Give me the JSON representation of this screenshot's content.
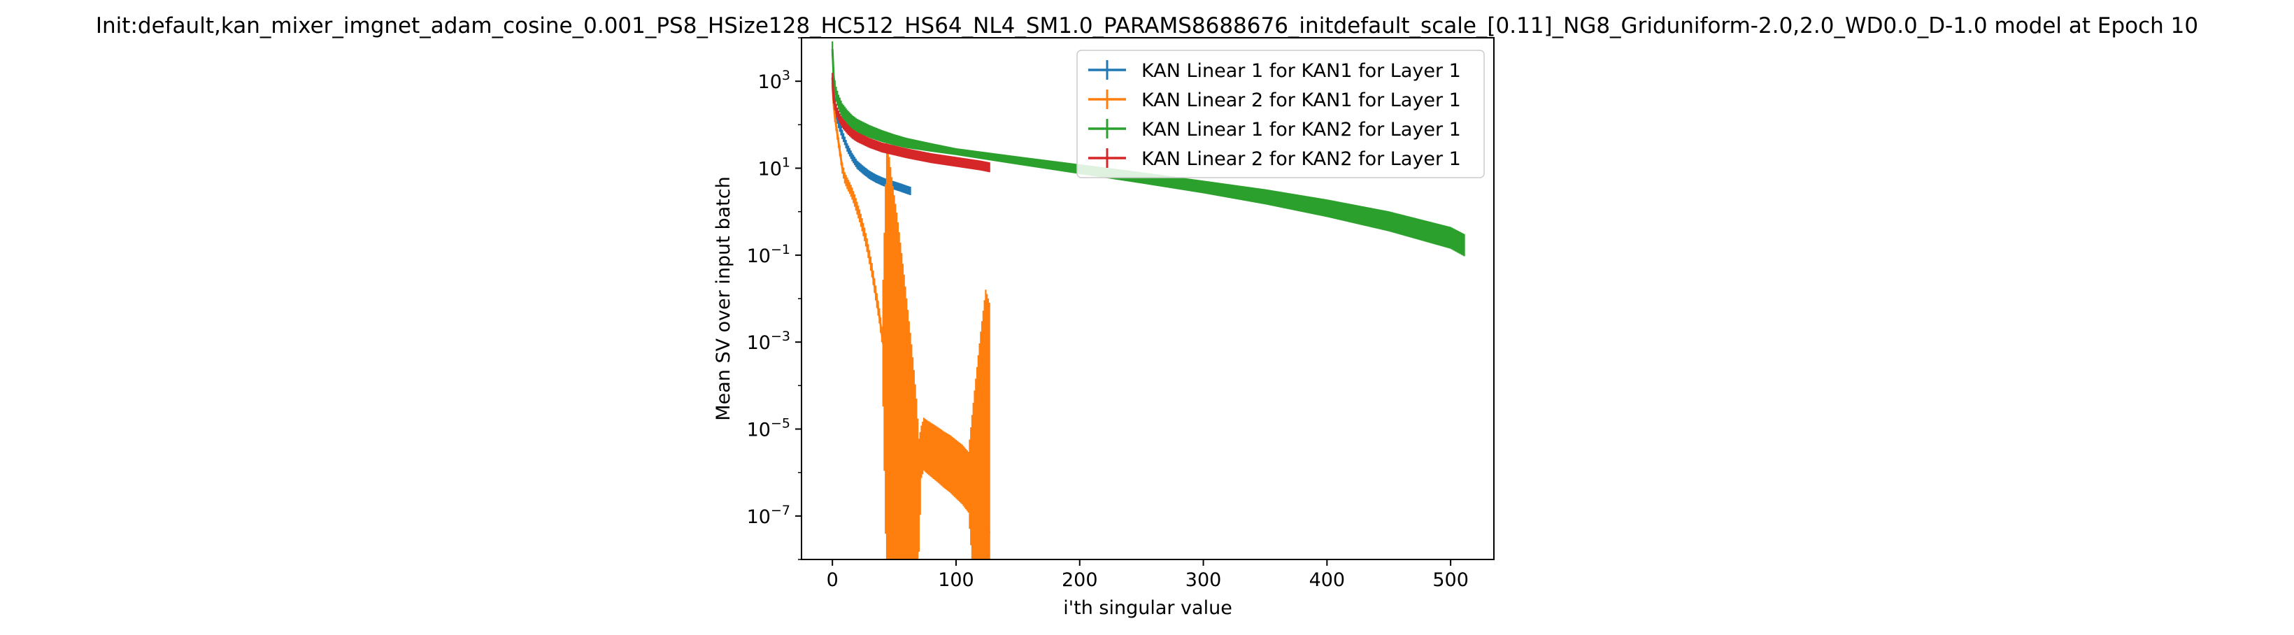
{
  "chart_data": {
    "type": "line",
    "title": "Init:default,kan_mixer_imgnet_adam_cosine_0.001_PS8_HSize128_HC512_HS64_NL4_SM1.0_PARAMS8688676_initdefault_scale_[0.11]_NG8_Griduniform-2.0,2.0_WD0.0_D-1.0 model at Epoch 10",
    "xlabel": "i'th singular value",
    "ylabel": "Mean SV over input batch",
    "y_scale": "log",
    "xlim": [
      -25,
      535
    ],
    "ylim": [
      1e-08,
      10000.0
    ],
    "x_ticks": [
      0,
      100,
      200,
      300,
      400,
      500
    ],
    "y_ticks": [
      {
        "base": "10",
        "exp": "3",
        "value": 1000
      },
      {
        "base": "10",
        "exp": "1",
        "value": 10
      },
      {
        "base": "10",
        "exp": "−1",
        "value": 0.1
      },
      {
        "base": "10",
        "exp": "−3",
        "value": 0.001
      },
      {
        "base": "10",
        "exp": "−5",
        "value": 1e-05
      },
      {
        "base": "10",
        "exp": "−7",
        "value": 1e-07
      }
    ],
    "grid": false,
    "legend_position": "top-right",
    "series": [
      {
        "name": "KAN Linear 1 for KAN1 for Layer 1",
        "color": "#1f77b4",
        "n": 64,
        "points": [
          [
            0,
            900
          ],
          [
            1,
            600
          ],
          [
            2,
            300
          ],
          [
            3,
            180
          ],
          [
            5,
            110
          ],
          [
            8,
            60
          ],
          [
            12,
            30
          ],
          [
            16,
            18
          ],
          [
            20,
            12
          ],
          [
            25,
            9
          ],
          [
            30,
            7
          ],
          [
            35,
            5.8
          ],
          [
            40,
            5
          ],
          [
            45,
            4.4
          ],
          [
            50,
            4
          ],
          [
            55,
            3.6
          ],
          [
            60,
            3.2
          ],
          [
            63,
            3
          ]
        ],
        "error": [
          [
            0,
            1.4
          ],
          [
            10,
            1.25
          ],
          [
            63,
            1.25
          ]
        ]
      },
      {
        "name": "KAN Linear 2 for KAN1 for Layer 1",
        "color": "#ff7f0e",
        "n": 128,
        "points": [
          [
            0,
            800
          ],
          [
            1,
            300
          ],
          [
            2,
            150
          ],
          [
            4,
            60
          ],
          [
            6,
            25
          ],
          [
            8,
            10
          ],
          [
            10,
            6
          ],
          [
            12,
            4.5
          ],
          [
            14,
            3.5
          ],
          [
            16,
            2.6
          ],
          [
            18,
            1.8
          ],
          [
            20,
            1.2
          ],
          [
            22,
            0.8
          ],
          [
            24,
            0.5
          ],
          [
            26,
            0.3
          ],
          [
            28,
            0.17
          ],
          [
            30,
            0.09
          ],
          [
            32,
            0.045
          ],
          [
            34,
            0.02
          ],
          [
            36,
            0.009
          ],
          [
            38,
            0.004
          ],
          [
            40,
            0.0015
          ],
          [
            42,
            0.0006
          ],
          [
            44,
            0.00028
          ],
          [
            46,
            0.00017
          ],
          [
            48,
            0.00011
          ],
          [
            50,
            8e-05
          ],
          [
            52,
            6e-05
          ],
          [
            54,
            4e-05
          ],
          [
            56,
            2.5e-05
          ],
          [
            58,
            1.5e-05
          ],
          [
            60,
            8e-06
          ],
          [
            62,
            4.5e-06
          ],
          [
            64,
            2.5e-06
          ],
          [
            66,
            1.2e-06
          ],
          [
            68,
            5e-07
          ],
          [
            70,
            3e-07
          ],
          [
            72,
            3e-06
          ],
          [
            74,
            4.5e-06
          ],
          [
            76,
            4e-06
          ],
          [
            80,
            3.3e-06
          ],
          [
            85,
            2.6e-06
          ],
          [
            90,
            2e-06
          ],
          [
            95,
            1.6e-06
          ],
          [
            100,
            1.2e-06
          ],
          [
            105,
            9e-07
          ],
          [
            110,
            6e-07
          ],
          [
            115,
            3.5e-07
          ],
          [
            120,
            1.8e-07
          ],
          [
            124,
            8e-08
          ],
          [
            127,
            4e-08
          ]
        ],
        "error": [
          [
            0,
            1.3
          ],
          [
            40,
            1.5
          ],
          [
            44,
            200000
          ],
          [
            68,
            100
          ],
          [
            72,
            4
          ],
          [
            110,
            5
          ],
          [
            124,
            200000
          ],
          [
            127,
            200000
          ]
        ]
      },
      {
        "name": "KAN Linear 1 for KAN2 for Layer 1",
        "color": "#2ca02c",
        "n": 512,
        "points": [
          [
            0,
            5500
          ],
          [
            1,
            1300
          ],
          [
            2,
            700
          ],
          [
            3,
            500
          ],
          [
            5,
            330
          ],
          [
            8,
            210
          ],
          [
            12,
            150
          ],
          [
            16,
            115
          ],
          [
            20,
            95
          ],
          [
            30,
            70
          ],
          [
            40,
            55
          ],
          [
            50,
            45
          ],
          [
            60,
            38
          ],
          [
            80,
            30
          ],
          [
            100,
            24
          ],
          [
            150,
            15
          ],
          [
            200,
            9.5
          ],
          [
            250,
            6
          ],
          [
            300,
            3.7
          ],
          [
            350,
            2.2
          ],
          [
            400,
            1.2
          ],
          [
            450,
            0.6
          ],
          [
            500,
            0.25
          ],
          [
            511,
            0.17
          ]
        ],
        "error": [
          [
            0,
            1.5
          ],
          [
            100,
            1.2
          ],
          [
            300,
            1.4
          ],
          [
            450,
            1.7
          ],
          [
            511,
            1.8
          ]
        ]
      },
      {
        "name": "KAN Linear 2 for KAN2 for Layer 1",
        "color": "#d62728",
        "n": 128,
        "points": [
          [
            0,
            1200
          ],
          [
            1,
            400
          ],
          [
            2,
            280
          ],
          [
            4,
            190
          ],
          [
            6,
            140
          ],
          [
            8,
            110
          ],
          [
            12,
            80
          ],
          [
            16,
            62
          ],
          [
            20,
            52
          ],
          [
            30,
            38
          ],
          [
            40,
            30
          ],
          [
            60,
            22
          ],
          [
            80,
            17
          ],
          [
            100,
            14
          ],
          [
            120,
            11.5
          ],
          [
            127,
            10.5
          ]
        ],
        "error": [
          [
            0,
            1.3
          ],
          [
            127,
            1.3
          ]
        ]
      }
    ]
  }
}
